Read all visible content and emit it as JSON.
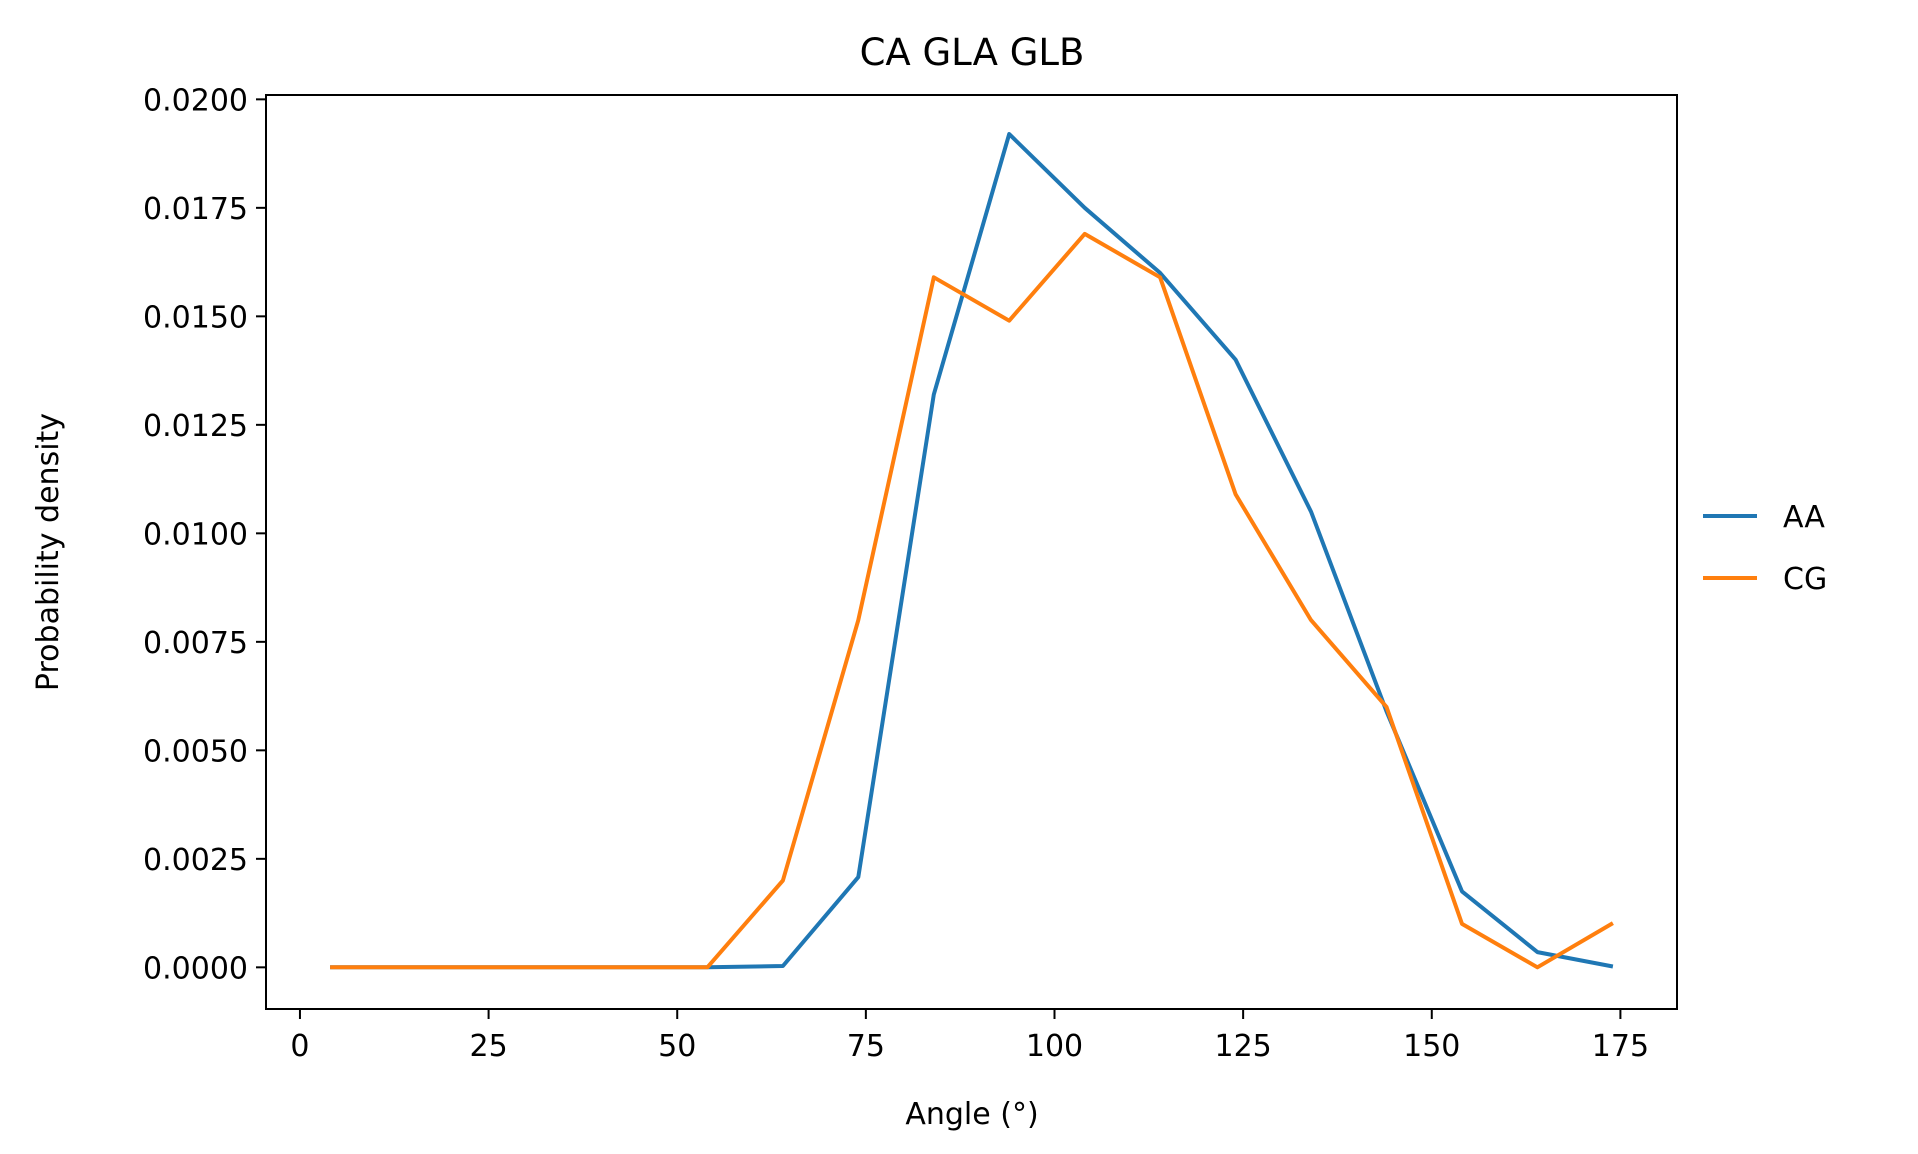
{
  "chart_data": {
    "type": "line",
    "title": "CA GLA GLB",
    "xlabel": "Angle (°)",
    "ylabel": "Probability density",
    "xlim": [
      -4.5,
      182.5
    ],
    "ylim": [
      -0.00096,
      0.0201
    ],
    "x_ticks": [
      0,
      25,
      50,
      75,
      100,
      125,
      150,
      175
    ],
    "x_tick_labels": [
      "0",
      "25",
      "50",
      "75",
      "100",
      "125",
      "150",
      "175"
    ],
    "y_ticks": [
      0.0,
      0.0025,
      0.005,
      0.0075,
      0.01,
      0.0125,
      0.015,
      0.0175,
      0.02
    ],
    "y_tick_labels": [
      "0.0000",
      "0.0025",
      "0.0050",
      "0.0075",
      "0.0100",
      "0.0125",
      "0.0150",
      "0.0175",
      "0.0200"
    ],
    "grid": false,
    "legend_position": "outside-right",
    "x": [
      4,
      14,
      24,
      34,
      44,
      54,
      64,
      74,
      84,
      94,
      104,
      114,
      124,
      134,
      144,
      154,
      164,
      174
    ],
    "series": [
      {
        "name": "AA",
        "color": "#1f77b4",
        "values": [
          0,
          0,
          0,
          0,
          0,
          0,
          3e-05,
          0.00208,
          0.0132,
          0.0192,
          0.0175,
          0.016,
          0.014,
          0.0105,
          0.0059,
          0.00175,
          0.00035,
          2e-05
        ]
      },
      {
        "name": "CG",
        "color": "#ff7f0e",
        "values": [
          0,
          0,
          0,
          0,
          0,
          0,
          0.002,
          0.008,
          0.0159,
          0.0149,
          0.0169,
          0.0159,
          0.0109,
          0.008,
          0.006,
          0.001,
          0.0,
          0.00102
        ]
      }
    ]
  }
}
